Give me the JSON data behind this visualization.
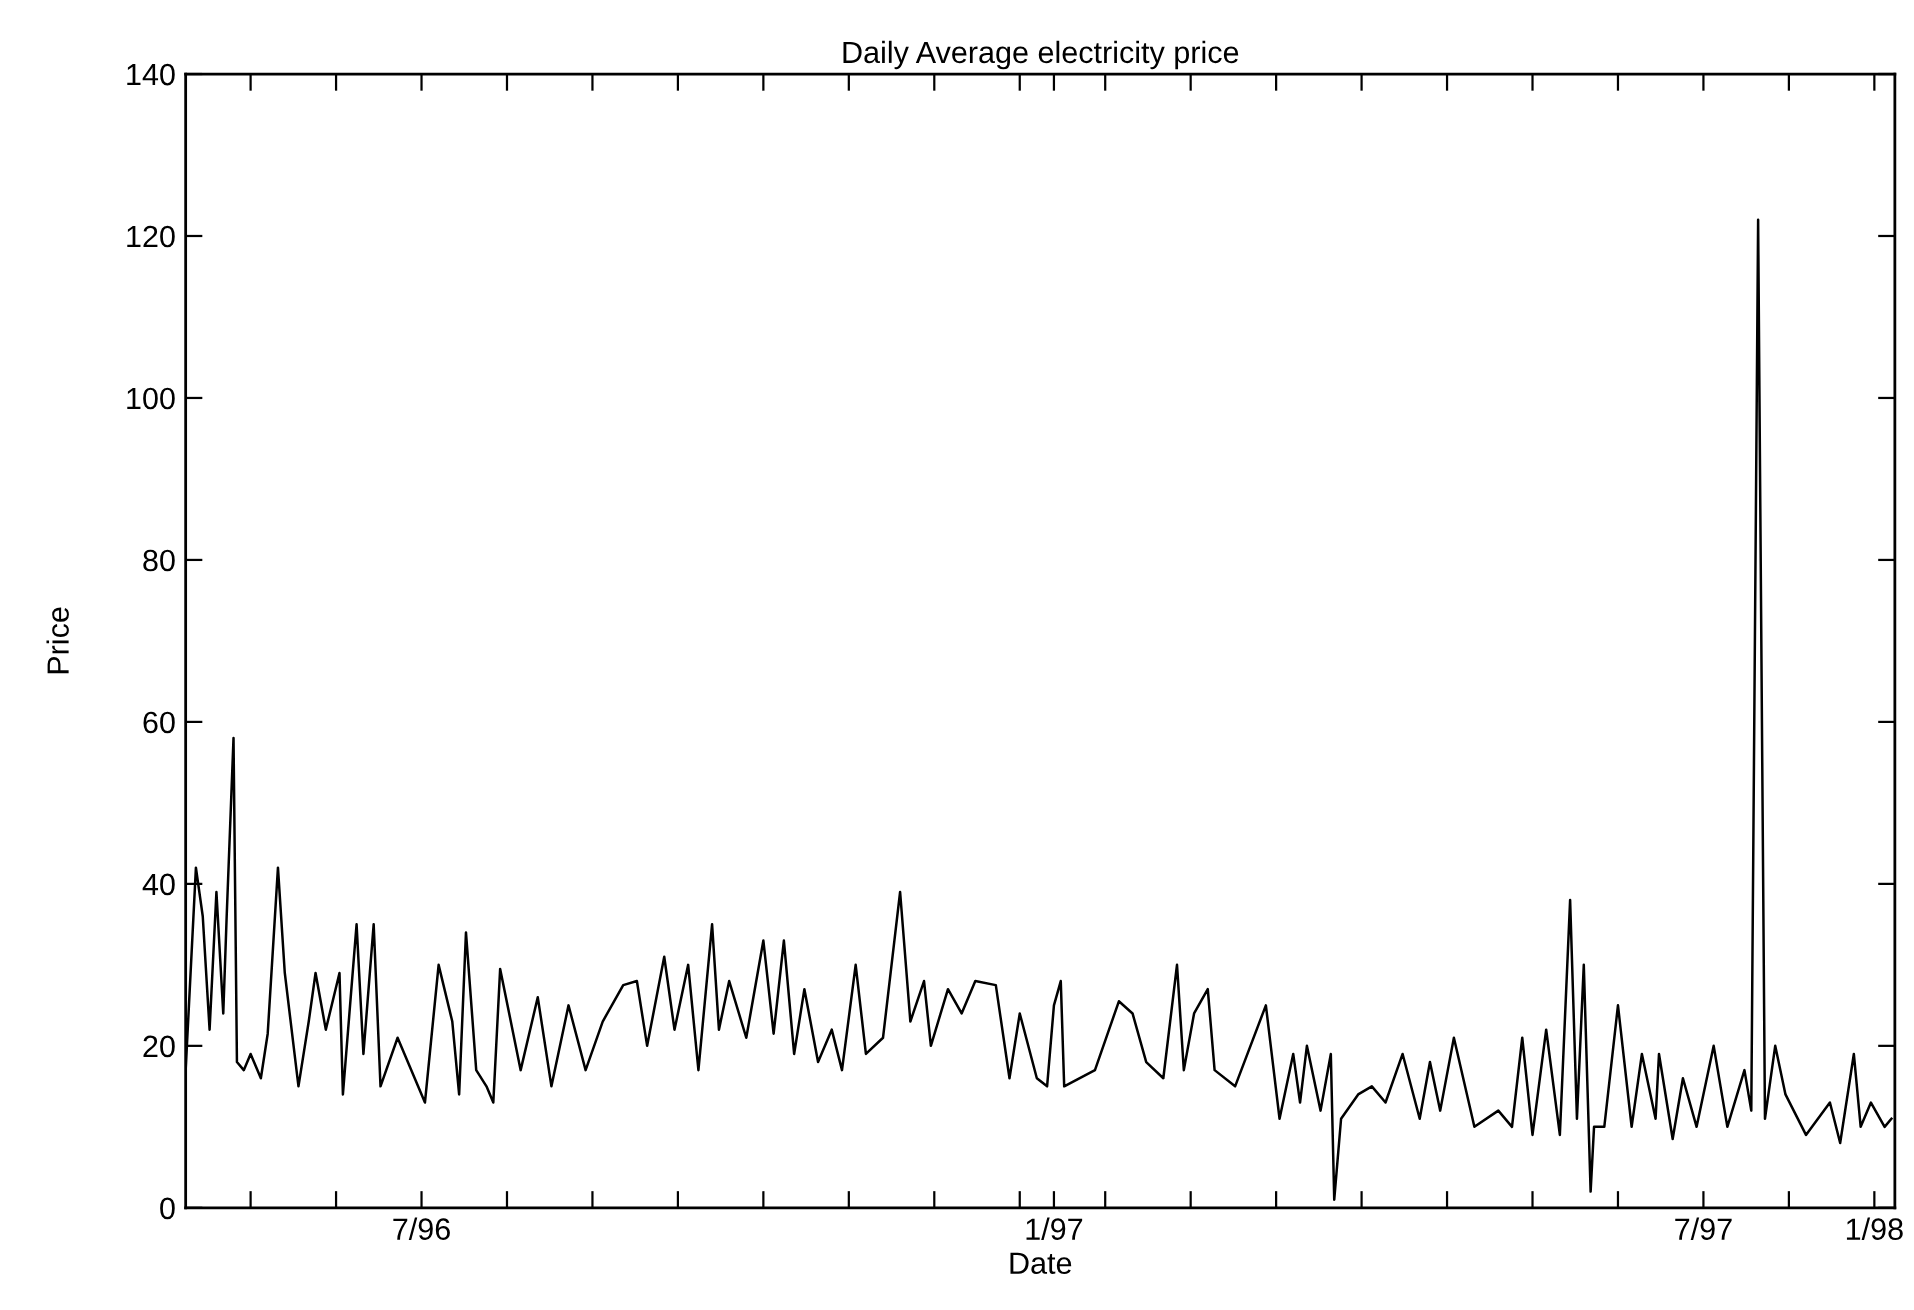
{
  "chart_data": {
    "type": "line",
    "title": "Daily Average electricity price",
    "xlabel": "Date",
    "ylabel": "Price",
    "x": [
      "1996-04-23",
      "1996-04-26",
      "1996-04-28",
      "1996-04-30",
      "1996-05-02",
      "1996-05-04",
      "1996-05-05",
      "1996-05-07",
      "1996-05-08",
      "1996-05-10",
      "1996-05-12",
      "1996-05-15",
      "1996-05-17",
      "1996-05-20",
      "1996-05-22",
      "1996-05-26",
      "1996-05-29",
      "1996-05-31",
      "1996-06-03",
      "1996-06-07",
      "1996-06-08",
      "1996-06-12",
      "1996-06-14",
      "1996-06-17",
      "1996-06-19",
      "1996-06-24",
      "1996-07-02",
      "1996-07-06",
      "1996-07-10",
      "1996-07-12",
      "1996-07-14",
      "1996-07-17",
      "1996-07-20",
      "1996-07-22",
      "1996-07-24",
      "1996-07-30",
      "1996-08-04",
      "1996-08-08",
      "1996-08-13",
      "1996-08-18",
      "1996-08-23",
      "1996-08-29",
      "1996-09-02",
      "1996-09-05",
      "1996-09-10",
      "1996-09-13",
      "1996-09-17",
      "1996-09-20",
      "1996-09-24",
      "1996-09-26",
      "1996-09-29",
      "1996-10-04",
      "1996-10-09",
      "1996-10-12",
      "1996-10-15",
      "1996-10-18",
      "1996-10-21",
      "1996-10-25",
      "1996-10-29",
      "1996-11-01",
      "1996-11-05",
      "1996-11-08",
      "1996-11-13",
      "1996-11-18",
      "1996-11-21",
      "1996-11-25",
      "1996-11-27",
      "1996-12-02",
      "1996-12-06",
      "1996-12-10",
      "1996-12-16",
      "1996-12-20",
      "1996-12-23",
      "1996-12-28",
      "1996-12-31",
      "1997-01-01",
      "1997-01-02",
      "1997-01-04",
      "1997-01-05",
      "1997-01-14",
      "1997-01-21",
      "1997-01-25",
      "1997-01-29",
      "1997-02-03",
      "1997-02-07",
      "1997-02-09",
      "1997-02-12",
      "1997-02-16",
      "1997-02-18",
      "1997-02-24",
      "1997-03-05",
      "1997-03-09",
      "1997-03-13",
      "1997-03-15",
      "1997-03-17",
      "1997-03-21",
      "1997-03-24",
      "1997-03-25",
      "1997-03-27",
      "1997-04-01",
      "1997-04-05",
      "1997-04-09",
      "1997-04-14",
      "1997-04-19",
      "1997-04-22",
      "1997-04-25",
      "1997-04-29",
      "1997-05-05",
      "1997-05-12",
      "1997-05-16",
      "1997-05-19",
      "1997-05-22",
      "1997-05-26",
      "1997-05-30",
      "1997-06-02",
      "1997-06-04",
      "1997-06-06",
      "1997-06-08",
      "1997-06-09",
      "1997-06-12",
      "1997-06-16",
      "1997-06-20",
      "1997-06-23",
      "1997-06-27",
      "1997-06-28",
      "1997-07-02",
      "1997-07-05",
      "1997-07-09",
      "1997-07-14",
      "1997-07-18",
      "1997-07-23",
      "1997-07-25",
      "1997-07-27",
      "1997-07-29",
      "1997-08-01",
      "1997-08-04",
      "1997-08-10",
      "1997-08-17",
      "1997-08-20",
      "1997-08-24",
      "1997-08-26",
      "1997-08-29",
      "1997-09-02",
      "1997-09-04"
    ],
    "series": [
      {
        "color": "#000000",
        "values": [
          17,
          42,
          36,
          22,
          39,
          24,
          36,
          58,
          18,
          17,
          19,
          16,
          21.5,
          42,
          29,
          15,
          23,
          29,
          22,
          29,
          14,
          35,
          19,
          35,
          15,
          21,
          13,
          30,
          23,
          14,
          34,
          17,
          15,
          13,
          29.5,
          17,
          26,
          15,
          25,
          17,
          23,
          27.5,
          28,
          20,
          31,
          22,
          30,
          17,
          35,
          22,
          28,
          21,
          33,
          21.5,
          33,
          19,
          27,
          18,
          22,
          17,
          30,
          19,
          21,
          39,
          23,
          28,
          20,
          27,
          24,
          28,
          27.5,
          16,
          24,
          16,
          15,
          20,
          25,
          28,
          15,
          17,
          25.5,
          24,
          18,
          16,
          30,
          17,
          24,
          27,
          17,
          15,
          25,
          11,
          19,
          13,
          20,
          12,
          19,
          1,
          11,
          14,
          15,
          13,
          19,
          11,
          18,
          12,
          21,
          10,
          12,
          10,
          21,
          9,
          22,
          9,
          38,
          11,
          30,
          2,
          10,
          10,
          25,
          10,
          19,
          11,
          19,
          8.5,
          16,
          10,
          20,
          10,
          17,
          12,
          122,
          11,
          20,
          14,
          9,
          13,
          8,
          19,
          10,
          13,
          10,
          11
        ]
      }
    ],
    "xlim": [
      "1996-04-23",
      "1997-09-05"
    ],
    "xticks": [
      {
        "value": "1996-05-12",
        "label": null
      },
      {
        "value": "1996-06-06",
        "label": null
      },
      {
        "value": "1996-07-01",
        "label": "7/96"
      },
      {
        "value": "1996-07-26",
        "label": null
      },
      {
        "value": "1996-08-20",
        "label": null
      },
      {
        "value": "1996-09-14",
        "label": null
      },
      {
        "value": "1996-10-09",
        "label": null
      },
      {
        "value": "1996-11-03",
        "label": null
      },
      {
        "value": "1996-11-28",
        "label": null
      },
      {
        "value": "1996-12-23",
        "label": null
      },
      {
        "value": "1997-01-02",
        "label": "1/97"
      },
      {
        "value": "1997-01-17",
        "label": null
      },
      {
        "value": "1997-02-11",
        "label": null
      },
      {
        "value": "1997-03-08",
        "label": null
      },
      {
        "value": "1997-04-02",
        "label": null
      },
      {
        "value": "1997-04-27",
        "label": null
      },
      {
        "value": "1997-05-22",
        "label": null
      },
      {
        "value": "1997-06-16",
        "label": null
      },
      {
        "value": "1997-07-11",
        "label": "7/97"
      },
      {
        "value": "1997-08-05",
        "label": null
      },
      {
        "value": "1997-08-30",
        "label": "1/98"
      }
    ],
    "ylim": [
      0,
      140
    ],
    "yticks": [
      0,
      20,
      40,
      60,
      80,
      100,
      120,
      140
    ],
    "grid": false,
    "marker": "none",
    "line_style": "solid"
  }
}
